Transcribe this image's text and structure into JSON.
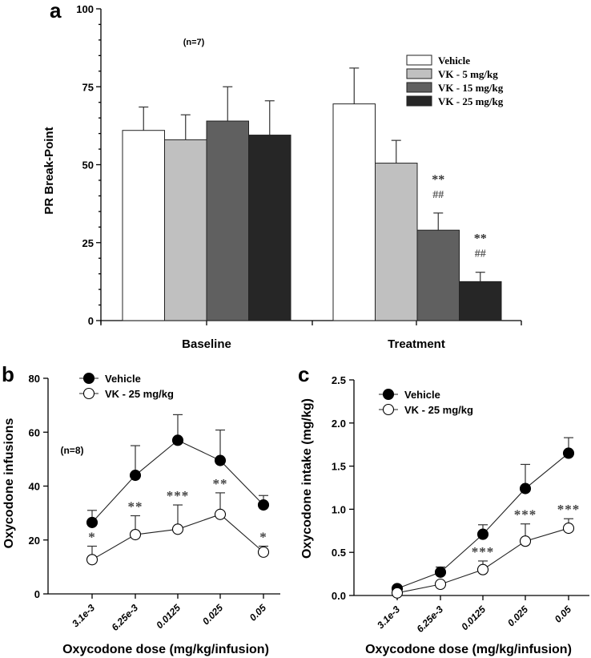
{
  "chart_data": [
    {
      "panel": "a",
      "type": "bar",
      "ylabel": "PR Break-Point",
      "xlabel": "",
      "ylim": [
        0,
        100
      ],
      "yticks": [
        "0",
        "25",
        "50",
        "75",
        "100"
      ],
      "categories": [
        "Baseline",
        "Treatment"
      ],
      "annotation": "(n=7)",
      "legend_position": "top-right",
      "series": [
        {
          "name": "Vehicle",
          "color": "#ffffff",
          "values": [
            61,
            69.5
          ],
          "error": [
            7.5,
            11.5
          ],
          "marks": [
            "",
            ""
          ],
          "hash": [
            "",
            ""
          ]
        },
        {
          "name": "VK - 5 mg/kg",
          "color": "#c0c0c0",
          "values": [
            58,
            50.5
          ],
          "error": [
            8,
            7.3
          ],
          "marks": [
            "",
            ""
          ],
          "hash": [
            "",
            ""
          ]
        },
        {
          "name": "VK - 15 mg/kg",
          "color": "#606060",
          "values": [
            64,
            29
          ],
          "error": [
            11,
            5.5
          ],
          "marks": [
            "",
            "**"
          ],
          "hash": [
            "",
            "##"
          ]
        },
        {
          "name": "VK - 25 mg/kg",
          "color": "#262626",
          "values": [
            59.5,
            12.5
          ],
          "error": [
            11,
            3
          ],
          "marks": [
            "",
            "**"
          ],
          "hash": [
            "",
            "##"
          ]
        }
      ]
    },
    {
      "panel": "b",
      "type": "line",
      "ylabel": "Oxycodone infusions",
      "xlabel": "Oxycodone dose (mg/kg/infusion)",
      "ylim": [
        0,
        80
      ],
      "yticks": [
        "0",
        "20",
        "40",
        "60",
        "80"
      ],
      "x": [
        "3.1e-3",
        "6.25e-3",
        "0.0125",
        "0.025",
        "0.05"
      ],
      "annotation": "(n=8)",
      "legend_position": "top-left",
      "series": [
        {
          "name": "Vehicle",
          "filled": true,
          "values": [
            26.5,
            44,
            57,
            49.5,
            33
          ],
          "error": [
            4.5,
            11,
            9.5,
            11.3,
            3.5
          ]
        },
        {
          "name": "VK - 25 mg/kg",
          "filled": false,
          "values": [
            12.7,
            22,
            24,
            29.5,
            15.5
          ],
          "error": [
            5,
            7,
            9,
            8,
            2.2
          ]
        }
      ],
      "significance": [
        "*",
        "**",
        "***",
        "**",
        "*"
      ]
    },
    {
      "panel": "c",
      "type": "line",
      "ylabel": "Oxycodone intake (mg/kg)",
      "xlabel": "Oxycodone dose (mg/kg/infusion)",
      "ylim": [
        0,
        2.5
      ],
      "yticks": [
        "0.0",
        "0.5",
        "1.0",
        "1.5",
        "2.0",
        "2.5"
      ],
      "x": [
        "3.1e-3",
        "6.25e-3",
        "0.0125",
        "0.025",
        "0.05"
      ],
      "legend_position": "top-left",
      "series": [
        {
          "name": "Vehicle",
          "filled": true,
          "values": [
            0.08,
            0.27,
            0.71,
            1.24,
            1.65
          ],
          "error": [
            0,
            0.06,
            0.11,
            0.28,
            0.18
          ]
        },
        {
          "name": "VK - 25 mg/kg",
          "filled": false,
          "values": [
            0.03,
            0.13,
            0.3,
            0.63,
            0.78
          ],
          "error": [
            0,
            0,
            0.1,
            0.2,
            0.11
          ]
        }
      ],
      "significance": [
        "",
        "",
        "***",
        "***",
        "***"
      ]
    }
  ],
  "panel_labels": [
    "a",
    "b",
    "c"
  ]
}
